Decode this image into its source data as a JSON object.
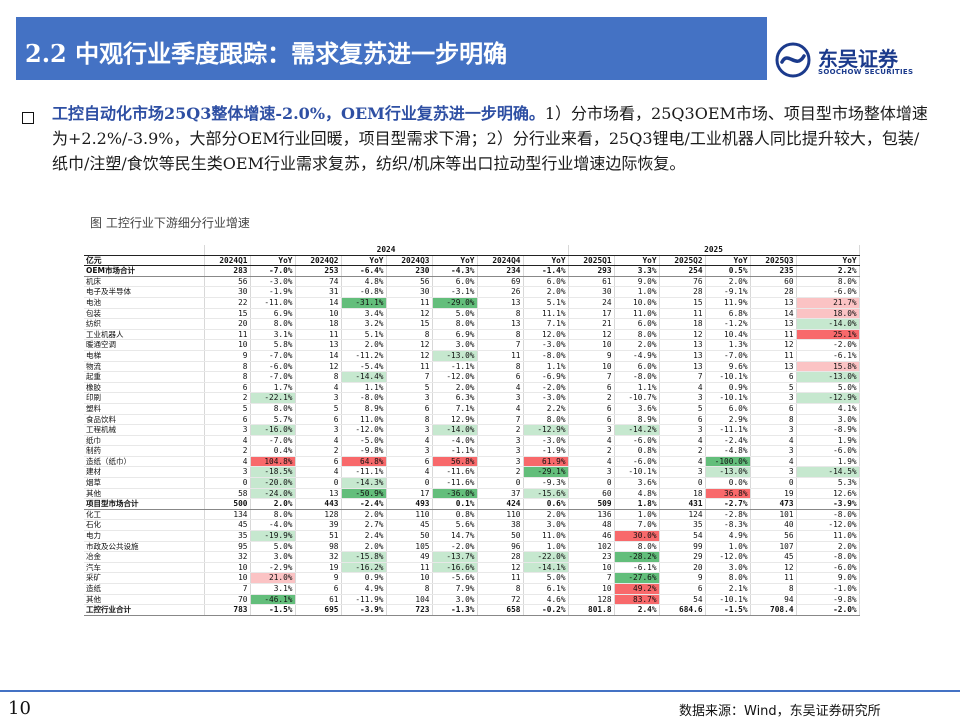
{
  "title": "2.2 中观行业季度跟踪：需求复苏进一步明确",
  "logo": {
    "cn": "东吴证券",
    "en": "SOOCHOW SECURITIES"
  },
  "para_bold": "工控自动化市场25Q3整体增速-2.0%，OEM行业复苏进一步明确。",
  "para_rest": "1）分市场看，25Q3OEM市场、项目型市场整体增速为+2.2%/-3.9%，大部分OEM行业回暖，项目型需求下滑；2）分行业来看，25Q3锂电/工业机器人同比提升较大，包装/纸巾/注塑/食饮等民生类OEM行业需求复苏，纺织/机床等出口拉动型行业增速边际恢复。",
  "figure_caption": "图  工控行业下游细分行业增速",
  "page_number": "10",
  "source": "数据来源：Wind，东吴证券研究所",
  "colors": {
    "accent": "#4472c4",
    "red_strong": "#f8696b",
    "red_light": "#fbc3c4",
    "green_strong": "#63be7b",
    "green_light": "#c6e8cf"
  },
  "table": {
    "years": [
      "",
      "2024",
      "2025"
    ],
    "columns": [
      "亿元",
      "2024Q1",
      "YoY",
      "2024Q2",
      "YoY",
      "2024Q3",
      "YoY",
      "2024Q4",
      "YoY",
      "2025Q1",
      "YoY",
      "2025Q2",
      "YoY",
      "2025Q3",
      "YoY"
    ],
    "rows": [
      [
        "OEM市场合计",
        "283",
        "-7.0%",
        "253",
        "-6.4%",
        "230",
        "-4.3%",
        "234",
        "-1.4%",
        "293",
        "3.3%",
        "254",
        "0.5%",
        "235",
        "2.2%"
      ],
      [
        "机床",
        "56",
        "-3.0%",
        "74",
        "4.8%",
        "56",
        "6.0%",
        "69",
        "6.0%",
        "61",
        "9.0%",
        "76",
        "2.0%",
        "60",
        "8.0%"
      ],
      [
        "电子及半导体",
        "30",
        "-1.9%",
        "31",
        "-0.8%",
        "30",
        "-3.1%",
        "26",
        "2.0%",
        "30",
        "1.0%",
        "28",
        "-9.1%",
        "28",
        "-6.0%"
      ],
      [
        "电池",
        "22",
        "-11.0%",
        "14",
        "-31.1%",
        "11",
        "-29.0%",
        "13",
        "5.1%",
        "24",
        "10.0%",
        "15",
        "11.9%",
        "13",
        "21.7%"
      ],
      [
        "包装",
        "15",
        "6.9%",
        "10",
        "3.4%",
        "12",
        "5.0%",
        "8",
        "11.1%",
        "17",
        "11.0%",
        "11",
        "6.8%",
        "14",
        "18.0%"
      ],
      [
        "纺织",
        "20",
        "8.0%",
        "18",
        "3.2%",
        "15",
        "8.0%",
        "13",
        "7.1%",
        "21",
        "6.0%",
        "18",
        "-1.2%",
        "13",
        "-14.0%"
      ],
      [
        "工业机器人",
        "11",
        "3.1%",
        "11",
        "5.1%",
        "8",
        "6.9%",
        "8",
        "12.0%",
        "12",
        "8.0%",
        "12",
        "10.4%",
        "11",
        "25.1%"
      ],
      [
        "暖通空调",
        "10",
        "5.8%",
        "13",
        "2.0%",
        "12",
        "3.0%",
        "7",
        "-3.0%",
        "10",
        "2.0%",
        "13",
        "1.3%",
        "12",
        "-2.0%"
      ],
      [
        "电梯",
        "9",
        "-7.0%",
        "14",
        "-11.2%",
        "12",
        "-13.0%",
        "11",
        "-8.0%",
        "9",
        "-4.9%",
        "13",
        "-7.0%",
        "11",
        "-6.1%"
      ],
      [
        "物流",
        "8",
        "-6.0%",
        "12",
        "-5.4%",
        "11",
        "-1.1%",
        "8",
        "1.1%",
        "10",
        "6.0%",
        "13",
        "9.6%",
        "13",
        "15.8%"
      ],
      [
        "起重",
        "8",
        "-7.0%",
        "8",
        "-14.4%",
        "7",
        "-12.0%",
        "6",
        "-6.9%",
        "7",
        "-8.0%",
        "7",
        "-10.1%",
        "6",
        "-13.0%"
      ],
      [
        "橡胶",
        "6",
        "1.7%",
        "4",
        "1.1%",
        "5",
        "2.0%",
        "4",
        "-2.0%",
        "6",
        "1.1%",
        "4",
        "0.9%",
        "5",
        "5.0%"
      ],
      [
        "印刷",
        "2",
        "-22.1%",
        "3",
        "-8.0%",
        "3",
        "6.3%",
        "3",
        "-3.0%",
        "2",
        "-10.7%",
        "3",
        "-10.1%",
        "3",
        "-12.9%"
      ],
      [
        "塑料",
        "5",
        "8.0%",
        "5",
        "8.9%",
        "6",
        "7.1%",
        "4",
        "2.2%",
        "6",
        "3.6%",
        "5",
        "6.0%",
        "6",
        "4.1%"
      ],
      [
        "食品饮料",
        "6",
        "5.7%",
        "6",
        "11.0%",
        "8",
        "12.9%",
        "7",
        "8.0%",
        "6",
        "8.9%",
        "6",
        "2.9%",
        "8",
        "3.0%"
      ],
      [
        "工程机械",
        "3",
        "-16.0%",
        "3",
        "-12.0%",
        "3",
        "-14.0%",
        "2",
        "-12.9%",
        "3",
        "-14.2%",
        "3",
        "-11.1%",
        "3",
        "-8.9%"
      ],
      [
        "纸巾",
        "4",
        "-7.0%",
        "4",
        "-5.0%",
        "4",
        "-4.0%",
        "3",
        "-3.0%",
        "4",
        "-6.0%",
        "4",
        "-2.4%",
        "4",
        "1.9%"
      ],
      [
        "制药",
        "2",
        "0.4%",
        "2",
        "-9.8%",
        "3",
        "-1.1%",
        "3",
        "-1.9%",
        "2",
        "0.8%",
        "2",
        "-4.8%",
        "3",
        "-6.0%"
      ],
      [
        "造纸（纸巾）",
        "4",
        "104.8%",
        "6",
        "64.8%",
        "6",
        "56.8%",
        "3",
        "61.9%",
        "4",
        "-6.0%",
        "4",
        "-100.0%",
        "4",
        "1.9%"
      ],
      [
        "建材",
        "3",
        "-18.5%",
        "4",
        "-11.1%",
        "4",
        "-11.6%",
        "2",
        "-29.1%",
        "3",
        "-10.1%",
        "3",
        "-13.0%",
        "3",
        "-14.5%"
      ],
      [
        "烟草",
        "0",
        "-20.0%",
        "0",
        "-14.3%",
        "0",
        "-11.6%",
        "0",
        "-9.3%",
        "0",
        "3.6%",
        "0",
        "0.0%",
        "0",
        "5.3%"
      ],
      [
        "其他",
        "58",
        "-24.0%",
        "13",
        "-50.9%",
        "17",
        "-36.0%",
        "37",
        "-15.6%",
        "60",
        "4.8%",
        "18",
        "36.8%",
        "19",
        "12.6%"
      ],
      [
        "项目型市场合计",
        "500",
        "2.0%",
        "443",
        "-2.4%",
        "493",
        "0.1%",
        "424",
        "0.6%",
        "509",
        "1.8%",
        "431",
        "-2.7%",
        "473",
        "-3.9%"
      ],
      [
        "化工",
        "134",
        "8.0%",
        "128",
        "2.0%",
        "110",
        "0.8%",
        "110",
        "2.0%",
        "136",
        "1.0%",
        "124",
        "-2.8%",
        "101",
        "-8.0%"
      ],
      [
        "石化",
        "45",
        "-4.0%",
        "39",
        "2.7%",
        "45",
        "5.6%",
        "38",
        "3.0%",
        "48",
        "7.0%",
        "35",
        "-8.3%",
        "40",
        "-12.0%"
      ],
      [
        "电力",
        "35",
        "-19.9%",
        "51",
        "2.4%",
        "50",
        "14.7%",
        "50",
        "11.0%",
        "46",
        "30.0%",
        "54",
        "4.9%",
        "56",
        "11.0%"
      ],
      [
        "市政及公共设施",
        "95",
        "5.0%",
        "98",
        "2.0%",
        "105",
        "-2.0%",
        "96",
        "1.0%",
        "102",
        "8.0%",
        "99",
        "1.0%",
        "107",
        "2.0%"
      ],
      [
        "冶金",
        "32",
        "3.0%",
        "32",
        "-15.8%",
        "49",
        "-13.7%",
        "28",
        "-22.0%",
        "23",
        "-28.2%",
        "29",
        "-12.0%",
        "45",
        "-8.0%"
      ],
      [
        "汽车",
        "10",
        "-2.9%",
        "19",
        "-16.2%",
        "11",
        "-16.6%",
        "12",
        "-14.1%",
        "10",
        "-6.1%",
        "20",
        "3.0%",
        "12",
        "-6.0%"
      ],
      [
        "采矿",
        "10",
        "21.0%",
        "9",
        "0.9%",
        "10",
        "-5.6%",
        "11",
        "5.0%",
        "7",
        "-27.6%",
        "9",
        "8.0%",
        "11",
        "9.0%"
      ],
      [
        "造纸",
        "7",
        "3.1%",
        "6",
        "4.9%",
        "8",
        "7.9%",
        "8",
        "6.1%",
        "10",
        "49.2%",
        "6",
        "2.1%",
        "8",
        "-1.0%"
      ],
      [
        "其他",
        "70",
        "-46.1%",
        "61",
        "-11.9%",
        "104",
        "3.0%",
        "72",
        "4.6%",
        "128",
        "83.7%",
        "54",
        "-10.1%",
        "94",
        "-9.8%"
      ],
      [
        "工控行业合计",
        "783",
        "-1.5%",
        "695",
        "-3.9%",
        "723",
        "-1.3%",
        "658",
        "-0.2%",
        "801.8",
        "2.4%",
        "684.6",
        "-1.5%",
        "708.4",
        "-2.0%"
      ]
    ],
    "total_rows": [
      0,
      22,
      32
    ]
  }
}
